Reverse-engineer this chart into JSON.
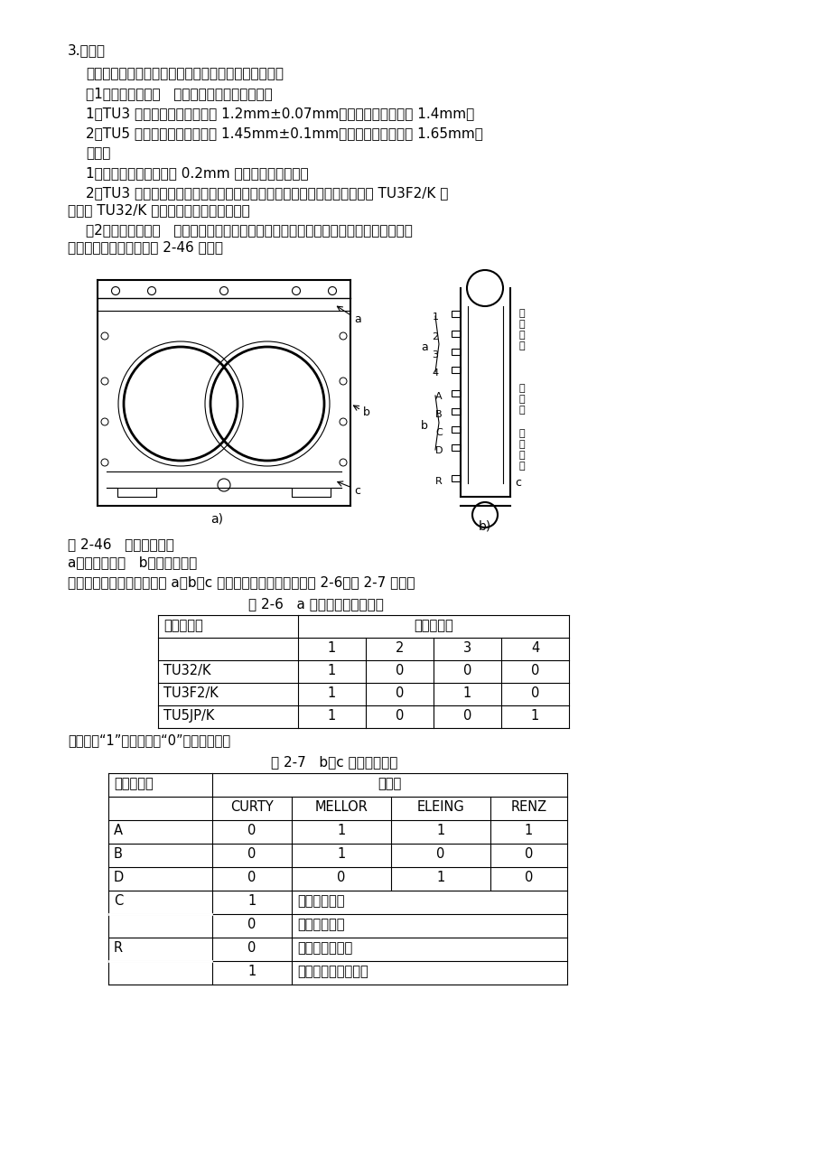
{
  "bg_color": "#ffffff",
  "text_color": "#000000",
  "title": "3.气缸垫",
  "line1": "气缸垫安装在气缸盖与气缸体之间，以保证其密封性。",
  "line2": "（1）气缸垫的厚度   各机型气缸垫的厚度如下：",
  "line3": "1）TU3 发动机气缸垫的厚度为 1.2mm±0.07mm，加厚气缸垫厚度为 1.4mm。",
  "line4": "2）TU5 发动机气缸垫的厚度为 1.45mm±0.1mm，加厚气缸垫厚度为 1.65mm。",
  "line5": "说明：",
  "line6": "1）加厚气缸垫适用于经 0.2mm 机加工后的气缸盖。",
  "line7a": "2）TU3 发动机气缸垫的厚度虽相同，但由于油道、水道的位置不同，因此 TU3F2/K 发",
  "line7b": "动机与 TU32/K 发动机的气缸垫不能互换。",
  "line8a": "（2）气缸垫的标识   适用于不同的发动机型号、不同的厂商、有无石棉及是否加厚等，",
  "line8b": "气缸垫上都有标识，如图 2-46 所示。",
  "fig_caption_1": "图 2-46   气缸垫的标识",
  "fig_caption_2": "a）标记的位置   b）标记的分布",
  "para_before_table1": "气缸垫的标记是通过其端部 a、b、c 三处的缺口来表示的，如表 2-6、表 2-7 所示。",
  "table1_title": "表 2-6   a 处缺口与适用的机型",
  "table1_note": "注：表中“1”表示缺口，“0”表示无缺口。",
  "table2_title": "表 2-7   b、c 处缺口的标识",
  "t1_col0_h": "适用的机型",
  "t1_col1_h": "缺口的位置",
  "t2_col0_h": "缺口的位置",
  "t2_col1_h": "供应商",
  "vert_text_a": "适用机型",
  "vert_text_b": "供应商",
  "vert_text_c": "是否加厚"
}
